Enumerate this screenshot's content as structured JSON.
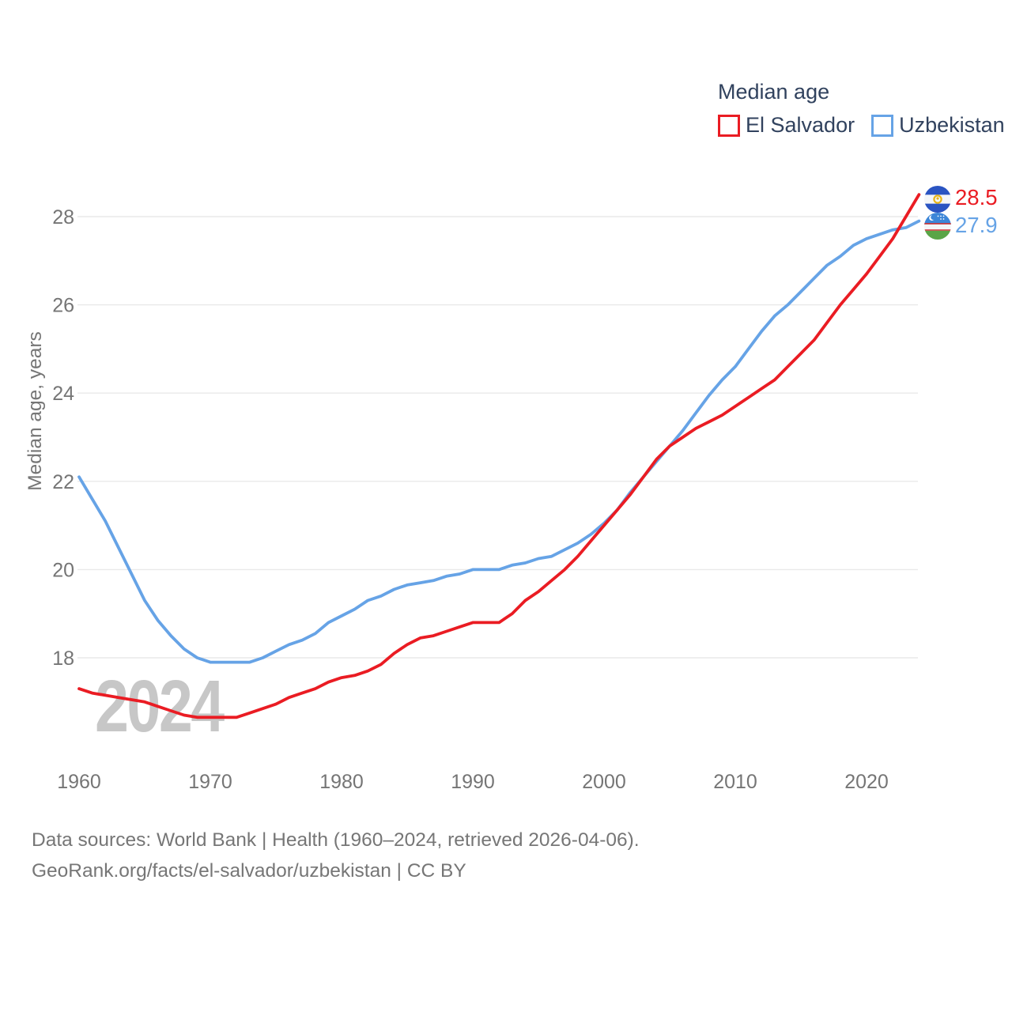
{
  "legend": {
    "title": "Median age",
    "items": [
      {
        "label": "El Salvador",
        "color": "#ea1c23"
      },
      {
        "label": "Uzbekistan",
        "color": "#66a3e6"
      }
    ]
  },
  "watermark": "2024",
  "footer": {
    "line1": "Data sources: World Bank | Health (1960–2024, retrieved 2026-04-06).",
    "line2": "GeoRank.org/facts/el-salvador/uzbekistan | CC BY"
  },
  "chart_data": {
    "type": "line",
    "title": "Median age",
    "xlabel": "",
    "ylabel": "Median age, years",
    "x_start": 1960,
    "x_end": 2024,
    "xlim": [
      1960,
      2024
    ],
    "ylim": [
      16.3,
      28.8
    ],
    "grid": "horizontal",
    "legend_position": "top-right",
    "x_ticks": [
      "1960",
      "1970",
      "1980",
      "1990",
      "2000",
      "2010",
      "2020"
    ],
    "y_ticks": [
      "18",
      "20",
      "22",
      "24",
      "26",
      "28"
    ],
    "series": [
      {
        "name": "Uzbekistan",
        "color": "#66a3e6",
        "end_label": "27.9",
        "end_flag": "uzbekistan-flag",
        "values": [
          22.1,
          21.6,
          21.1,
          20.5,
          19.9,
          19.3,
          18.85,
          18.5,
          18.2,
          18.0,
          17.9,
          17.9,
          17.9,
          17.9,
          18.0,
          18.15,
          18.3,
          18.4,
          18.55,
          18.8,
          18.95,
          19.1,
          19.3,
          19.4,
          19.55,
          19.65,
          19.7,
          19.75,
          19.85,
          19.9,
          20.0,
          20.0,
          20.0,
          20.1,
          20.15,
          20.25,
          20.3,
          20.45,
          20.6,
          20.8,
          21.05,
          21.35,
          21.75,
          22.1,
          22.45,
          22.8,
          23.15,
          23.55,
          23.95,
          24.3,
          24.6,
          25.0,
          25.4,
          25.75,
          26.0,
          26.3,
          26.6,
          26.9,
          27.1,
          27.35,
          27.5,
          27.6,
          27.7,
          27.75,
          27.9
        ]
      },
      {
        "name": "El Salvador",
        "color": "#ea1c23",
        "end_label": "28.5",
        "end_flag": "el-salvador-flag",
        "values": [
          17.3,
          17.2,
          17.15,
          17.1,
          17.05,
          17.0,
          16.9,
          16.8,
          16.7,
          16.65,
          16.65,
          16.65,
          16.65,
          16.75,
          16.85,
          16.95,
          17.1,
          17.2,
          17.3,
          17.45,
          17.55,
          17.6,
          17.7,
          17.85,
          18.1,
          18.3,
          18.45,
          18.5,
          18.6,
          18.7,
          18.8,
          18.8,
          18.8,
          19.0,
          19.3,
          19.5,
          19.75,
          20.0,
          20.3,
          20.65,
          21.0,
          21.35,
          21.7,
          22.1,
          22.5,
          22.8,
          23.0,
          23.2,
          23.35,
          23.5,
          23.7,
          23.9,
          24.1,
          24.3,
          24.6,
          24.9,
          25.2,
          25.6,
          26.0,
          26.35,
          26.7,
          27.1,
          27.5,
          28.0,
          28.5
        ]
      }
    ]
  }
}
